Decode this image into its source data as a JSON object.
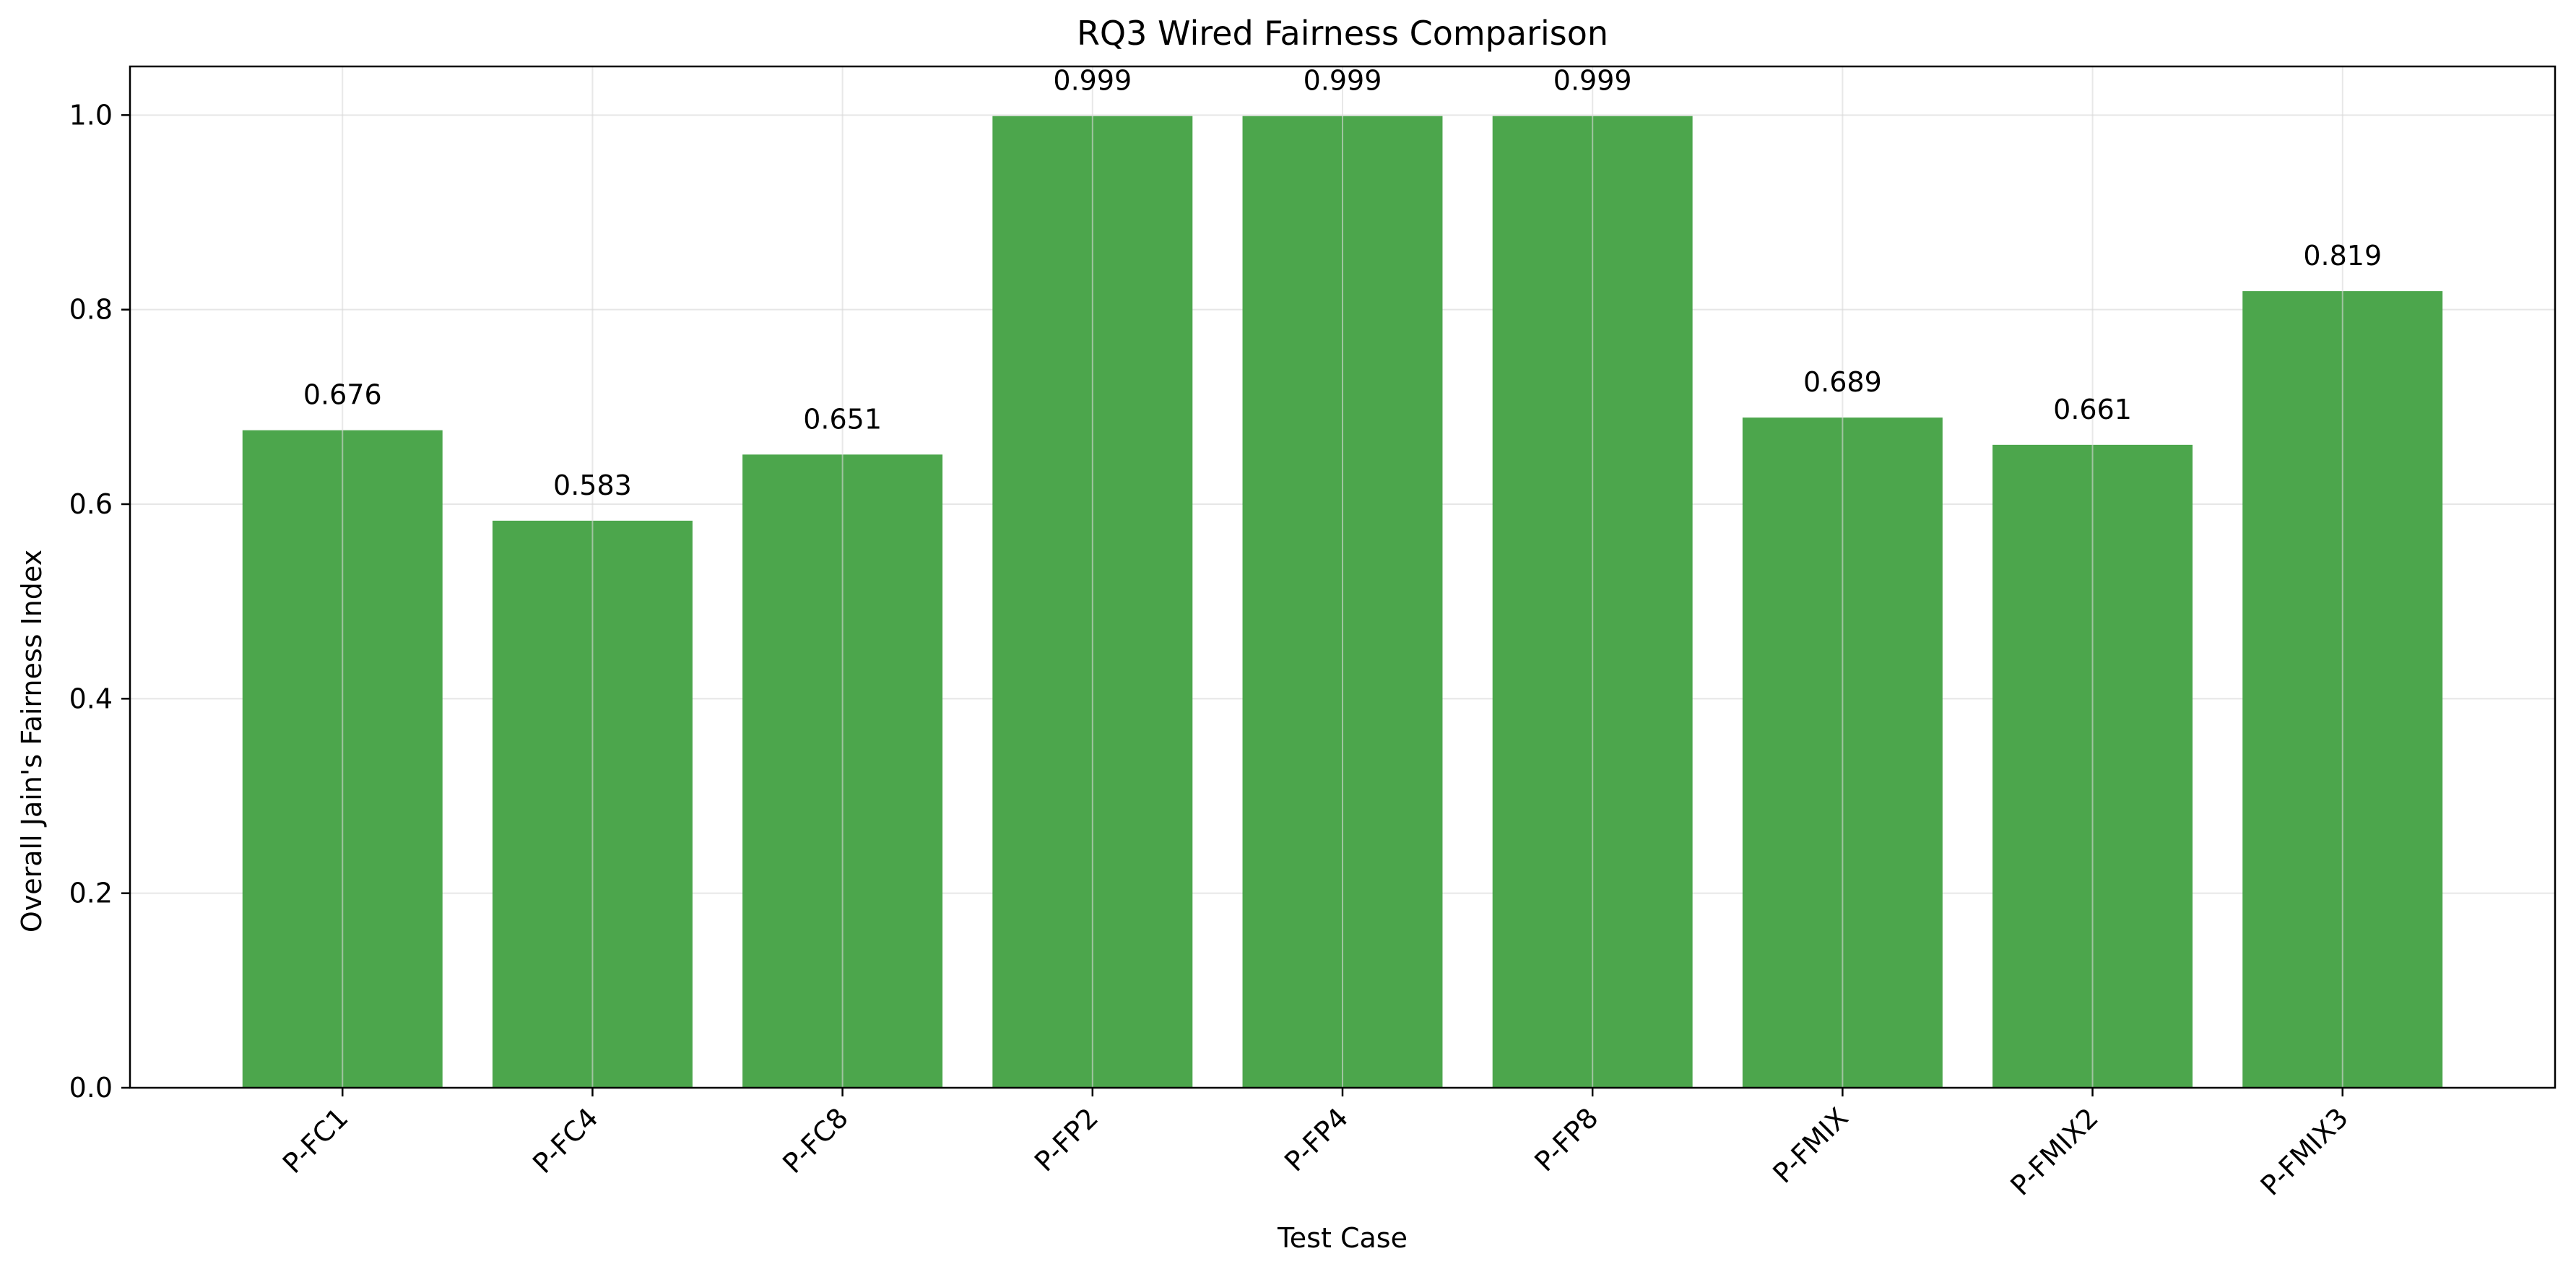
{
  "chart_data": {
    "type": "bar",
    "title": "RQ3 Wired Fairness Comparison",
    "xlabel": "Test Case",
    "ylabel": "Overall Jain's Fairness Index",
    "categories": [
      "P-FC1",
      "P-FC4",
      "P-FC8",
      "P-FP2",
      "P-FP4",
      "P-FP8",
      "P-FMIX",
      "P-FMIX2",
      "P-FMIX3"
    ],
    "values": [
      0.676,
      0.583,
      0.651,
      0.999,
      0.999,
      0.999,
      0.689,
      0.661,
      0.819
    ],
    "data_labels": [
      "0.676",
      "0.583",
      "0.651",
      "0.999",
      "0.999",
      "0.999",
      "0.689",
      "0.661",
      "0.819"
    ],
    "ylim": [
      0,
      1.05
    ],
    "yticks": [
      0.0,
      0.2,
      0.4,
      0.6,
      0.8,
      1.0
    ],
    "ytick_labels": [
      "0.0",
      "0.2",
      "0.4",
      "0.6",
      "0.8",
      "1.0"
    ],
    "xtick_rotation_deg": 45,
    "grid": true,
    "legend": "none",
    "bar_color": "#4ca64c",
    "grid_color": "#e6e6e6"
  }
}
